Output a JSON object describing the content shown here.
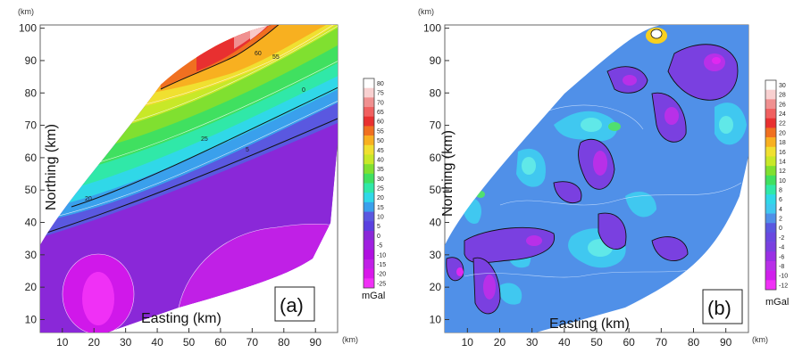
{
  "chart_data": [
    {
      "type": "heatmap",
      "panel_label": "(a)",
      "xlabel": "Easting (km)",
      "ylabel": "Northing (km)",
      "x_unit": "(km)",
      "y_unit": "(km)",
      "xticks": [
        "10",
        "20",
        "30",
        "40",
        "50",
        "60",
        "70",
        "80",
        "90"
      ],
      "yticks": [
        "10",
        "20",
        "30",
        "40",
        "50",
        "60",
        "70",
        "80",
        "90",
        "100"
      ],
      "xlim": [
        3,
        97
      ],
      "ylim": [
        6,
        101
      ],
      "colorbar": {
        "unit": "mGal",
        "ticks": [
          "80",
          "75",
          "70",
          "65",
          "60",
          "55",
          "50",
          "45",
          "40",
          "35",
          "30",
          "25",
          "20",
          "15",
          "10",
          "5",
          "0",
          "-5",
          "-10",
          "-15",
          "-20",
          "-25"
        ]
      },
      "contour_labels": [
        "-5",
        "5",
        "25",
        "25",
        "20",
        "60",
        "55",
        "5",
        "0",
        "-5"
      ]
    },
    {
      "type": "heatmap",
      "panel_label": "(b)",
      "xlabel": "Easting (km)",
      "ylabel": "Northing (km)",
      "x_unit": "(km)",
      "y_unit": "(km)",
      "xticks": [
        "10",
        "20",
        "30",
        "40",
        "50",
        "60",
        "70",
        "80",
        "90"
      ],
      "yticks": [
        "10",
        "20",
        "30",
        "40",
        "50",
        "60",
        "70",
        "80",
        "90",
        "100"
      ],
      "xlim": [
        3,
        97
      ],
      "ylim": [
        6,
        101
      ],
      "colorbar": {
        "unit": "mGal",
        "ticks": [
          "30",
          "28",
          "26",
          "24",
          "22",
          "20",
          "18",
          "16",
          "14",
          "12",
          "10",
          "8",
          "6",
          "4",
          "2",
          "0",
          "-2",
          "-4",
          "-6",
          "-8",
          "-10",
          "-12"
        ]
      }
    }
  ]
}
